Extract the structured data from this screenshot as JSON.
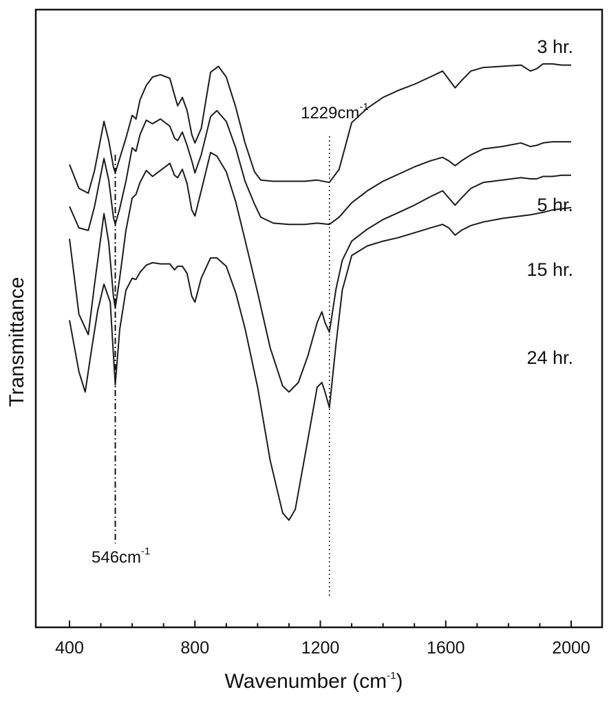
{
  "chart_data": {
    "type": "line",
    "title": "",
    "xlabel": {
      "base": "Wavenumber (cm",
      "sup": "-1",
      "end": ")"
    },
    "ylabel": "Transmittance",
    "xlim": [
      400,
      2000
    ],
    "x_ticks": [
      400,
      800,
      1200,
      1600,
      2000
    ],
    "x_tick_labels": [
      "400",
      "800",
      "1200",
      "1600",
      "2000"
    ],
    "y_ticks_shown": false,
    "grid": false,
    "legend": "none (series labelled on curves)",
    "series": [
      {
        "name": "3 hr.",
        "x": [
          400,
          430,
          460,
          480,
          510,
          525,
          540,
          546,
          560,
          580,
          600,
          612,
          625,
          645,
          665,
          690,
          720,
          735,
          745,
          760,
          775,
          790,
          800,
          820,
          850,
          875,
          900,
          930,
          960,
          990,
          1010,
          1050,
          1100,
          1150,
          1190,
          1229,
          1260,
          1300,
          1350,
          1400,
          1450,
          1500,
          1550,
          1590,
          1610,
          1630,
          1650,
          1680,
          1720,
          1780,
          1840,
          1870,
          1890,
          1910,
          1940,
          1970,
          2000
        ],
        "y": [
          7.0,
          5.0,
          4.6,
          6.5,
          10.6,
          9.0,
          6.8,
          6.3,
          7.5,
          9.2,
          11.1,
          10.8,
          12.4,
          13.6,
          14.3,
          14.5,
          14.2,
          12.8,
          11.9,
          12.6,
          11.5,
          9.5,
          8.8,
          10.0,
          14.7,
          15.2,
          14.3,
          11.8,
          8.8,
          6.4,
          5.7,
          5.6,
          5.6,
          5.6,
          5.7,
          5.5,
          6.6,
          10.5,
          11.7,
          12.6,
          13.2,
          13.7,
          14.3,
          14.8,
          14.1,
          13.4,
          14.0,
          14.8,
          15.1,
          15.2,
          15.3,
          14.8,
          15.0,
          15.4,
          15.4,
          15.3,
          15.3
        ]
      },
      {
        "name": "5 hr.",
        "x": [
          400,
          430,
          460,
          480,
          510,
          525,
          540,
          546,
          560,
          580,
          600,
          612,
          625,
          645,
          665,
          690,
          720,
          735,
          745,
          760,
          775,
          790,
          800,
          820,
          850,
          870,
          900,
          930,
          960,
          990,
          1010,
          1050,
          1100,
          1150,
          1190,
          1229,
          1260,
          1300,
          1350,
          1400,
          1450,
          1500,
          1550,
          1590,
          1610,
          1630,
          1650,
          1680,
          1720,
          1780,
          1840,
          1870,
          1890,
          1910,
          1940,
          1970,
          2000
        ],
        "y": [
          3.5,
          1.7,
          1.5,
          3.5,
          7.5,
          5.7,
          2.6,
          2.0,
          3.3,
          5.6,
          8.4,
          8.1,
          9.5,
          10.7,
          10.4,
          10.8,
          10.2,
          9.2,
          9.0,
          9.7,
          8.6,
          7.3,
          6.3,
          7.8,
          11.0,
          11.5,
          10.6,
          8.4,
          5.6,
          3.7,
          2.6,
          2.1,
          2.0,
          2.0,
          2.1,
          2.0,
          2.6,
          3.8,
          4.8,
          5.6,
          6.2,
          6.8,
          7.3,
          7.6,
          7.3,
          6.9,
          7.3,
          7.8,
          8.3,
          8.5,
          8.8,
          8.5,
          8.6,
          8.8,
          8.9,
          8.9,
          8.9
        ]
      },
      {
        "name": "15 hr.",
        "x": [
          400,
          430,
          460,
          480,
          510,
          525,
          540,
          546,
          560,
          580,
          600,
          612,
          625,
          645,
          665,
          690,
          720,
          735,
          745,
          760,
          775,
          790,
          800,
          820,
          850,
          870,
          900,
          930,
          960,
          1000,
          1040,
          1080,
          1100,
          1130,
          1160,
          1190,
          1205,
          1215,
          1229,
          1250,
          1270,
          1300,
          1350,
          1400,
          1450,
          1500,
          1550,
          1590,
          1610,
          1630,
          1650,
          1680,
          1720,
          1780,
          1840,
          1870,
          1890,
          1910,
          1940,
          1970,
          2000
        ],
        "y": [
          0.8,
          -5.5,
          -7.2,
          -3.0,
          2.9,
          0.5,
          -4.0,
          -5.0,
          -2.5,
          1.5,
          4.2,
          4.5,
          5.5,
          6.5,
          6.0,
          6.5,
          7.1,
          6.1,
          5.9,
          6.6,
          5.4,
          3.2,
          2.7,
          4.8,
          8.0,
          7.7,
          6.4,
          3.9,
          0.7,
          -3.7,
          -8.3,
          -11.5,
          -12.0,
          -11.2,
          -9.0,
          -6.2,
          -5.3,
          -6.2,
          -7.0,
          -3.4,
          -1.0,
          0.6,
          1.6,
          2.4,
          3.0,
          3.6,
          4.3,
          4.8,
          4.2,
          3.6,
          4.2,
          5.0,
          5.5,
          5.7,
          5.9,
          5.8,
          5.8,
          6.0,
          6.0,
          6.1,
          6.1
        ]
      },
      {
        "name": "24 hr.",
        "x": [
          400,
          430,
          450,
          470,
          490,
          510,
          530,
          546,
          560,
          580,
          600,
          612,
          625,
          645,
          665,
          690,
          720,
          735,
          745,
          760,
          775,
          790,
          800,
          820,
          850,
          870,
          900,
          930,
          960,
          1000,
          1040,
          1080,
          1100,
          1120,
          1160,
          1190,
          1205,
          1215,
          1229,
          1250,
          1270,
          1300,
          1350,
          1400,
          1450,
          1500,
          1550,
          1590,
          1610,
          1630,
          1650,
          1680,
          1720,
          1780,
          1840,
          1870,
          1890,
          1910,
          1940,
          1970,
          2000
        ],
        "y": [
          -6.0,
          -10.3,
          -12.0,
          -8.5,
          -5.2,
          -3.0,
          -4.5,
          -11.4,
          -6.8,
          -3.5,
          -2.5,
          -2.6,
          -2.0,
          -1.4,
          -1.2,
          -1.3,
          -1.3,
          -1.8,
          -1.5,
          -1.5,
          -2.1,
          -4.0,
          -4.5,
          -2.5,
          -0.8,
          -0.8,
          -1.5,
          -3.7,
          -6.7,
          -11.6,
          -17.7,
          -22.1,
          -22.7,
          -21.8,
          -16.0,
          -11.6,
          -11.2,
          -12.0,
          -13.3,
          -8.0,
          -3.5,
          -0.6,
          0.2,
          0.6,
          0.9,
          1.3,
          1.7,
          2.0,
          1.7,
          1.1,
          1.5,
          1.9,
          2.2,
          2.5,
          2.7,
          2.8,
          2.9,
          3.0,
          3.2,
          3.3,
          3.4
        ]
      }
    ],
    "annotations": [
      {
        "id": "peak-546",
        "x": 546,
        "style": "dash-dot",
        "label": {
          "base": "546cm",
          "sup": "-1"
        }
      },
      {
        "id": "peak-1229",
        "x": 1229,
        "style": "dotted",
        "label": {
          "base": "1229cm",
          "sup": "-1"
        }
      }
    ]
  }
}
